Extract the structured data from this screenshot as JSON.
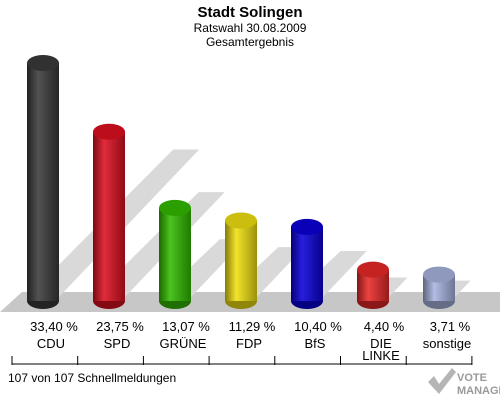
{
  "chart_data": {
    "type": "bar",
    "title": "Stadt Solingen",
    "subtitle_1": "Ratswahl 30.08.2009",
    "subtitle_2": "Gesamtergebnis",
    "categories": [
      "CDU",
      "SPD",
      "GRÜNE",
      "FDP",
      "BfS",
      "DIE LINKE",
      "sonstige"
    ],
    "values": [
      33.4,
      23.75,
      13.07,
      11.29,
      10.4,
      4.4,
      3.71
    ],
    "value_labels": [
      "33,40 %",
      "23,75 %",
      "13,07 %",
      "11,29 %",
      "10,40 %",
      "4,40 %",
      "3,71 %"
    ],
    "colors": [
      "#3a3a3a",
      "#dd0f20",
      "#33bb00",
      "#f0e010",
      "#0a00d8",
      "#e82828",
      "#a8b4e0"
    ],
    "ylim": [
      0,
      33.4
    ],
    "xlabel": "",
    "ylabel": ""
  },
  "footer": {
    "note": "107 von 107 Schnellmeldungen",
    "logo_line1": "VOTE",
    "logo_line2": "MANAGER"
  }
}
